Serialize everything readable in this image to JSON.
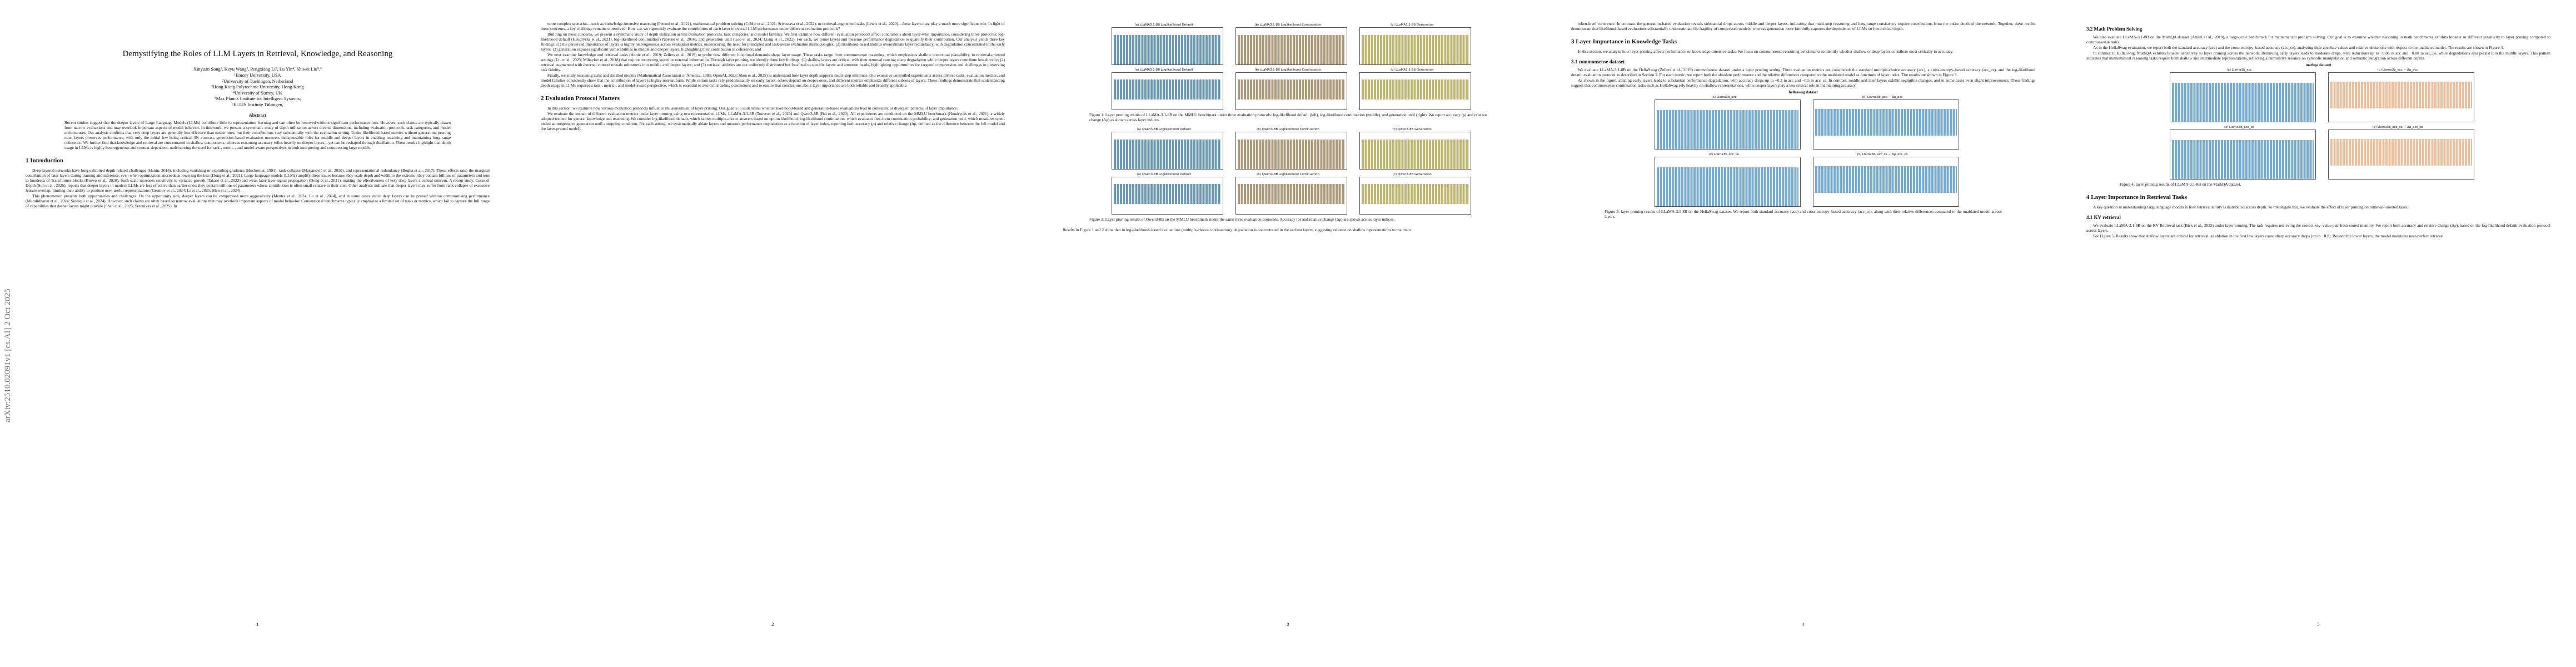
{
  "stamp": "arXiv:2510.02091v1  [cs.AI]  2 Oct 2025",
  "pages": [
    {
      "number": "1",
      "blocks": [
        {
          "type": "title",
          "text": "Demystifying the Roles of LLM Layers in Retrieval, Knowledge, and Reasoning"
        },
        {
          "type": "authors",
          "text": "Xinyuan Song¹, Keyu Wang², Pengxiang Li³, Lu Yin⁴, Shiwei Liu⁵,⁶"
        },
        {
          "type": "affil",
          "text": "¹Emory University, USA"
        },
        {
          "type": "affil",
          "text": "²University of Tuebingen, Netherland"
        },
        {
          "type": "affil",
          "text": "³Hong Kong Polytechnic University, Hong Kong"
        },
        {
          "type": "affil",
          "text": "⁴University of Surrey, UK"
        },
        {
          "type": "affil",
          "text": "⁵Max Planck Institute for Intelligent Systems,"
        },
        {
          "type": "affil",
          "text": "⁶ELLIS Institute Tübingen,"
        },
        {
          "type": "abshead",
          "text": "Abstract"
        },
        {
          "type": "abstract",
          "text": "Recent studies suggest that the deeper layers of Large Language Models (LLMs) contribute little to representation learning and can often be removed without significant performance loss. However, such claims are typically drawn from narrow evaluations and may overlook important aspects of model behavior. In this work, we present a systematic study of depth utilization across diverse dimensions, including evaluation protocols, task categories, and model architectures. Our analysis confirms that very deep layers are generally less effective than earlier ones, but their contributions vary substantially with the evaluation setting. Under likelihood-based metrics without generation, pruning most layers preserves performance, with only the initial few being critical. By contrast, generation-based evaluation uncovers indispensable roles for middle and deeper layers in enabling reasoning and maintaining long-range coherence. We further find that knowledge and retrieval are concentrated in shallow components, whereas reasoning accuracy relies heavily on deeper layers—yet can be reshaped through distillation. These results highlight that depth usage in LLMs is highly heterogeneous and context-dependent, underscoring the need for task-, metric-, and model-aware perspectives in both interpreting and compressing large models."
        },
        {
          "type": "h1",
          "text": "1   Introduction"
        },
        {
          "type": "p",
          "text": "Deep-layered networks have long exhibited depth-related challenges (Hanin, 2018), including vanishing or exploding gradients (Hochreiter, 1991), rank collapse (Marjanović et al., 2020), and representational redundancy (Bogha et al., 2017). These effects raise the marginal contribution of later layers during training and inference, even when optimization succeeds at lowering the loss (Dong et al., 2021). Large language models (LLMs) amplify these issues because they scale depth and width to the extreme: they contain billions of parameters and tens to hundreds of Transformer blocks (Brown et al., 2020). Such scale increases sensitivity to variance growth (Takase et al., 2023) and weak later-layer signal propagation (Dong et al., 2021), making the effectiveness of very deep layers a central concern. A recent study, Curse of Depth (Sun et al., 2025), reports that deeper layers in modern LLMs are less effective than earlier ones: they contain trillions of parameters whose contribution is often small relative to their cost. Other analyses indicate that deeper layers may suffer from rank collapse or excessive feature overlap, limiting their ability to produce new, useful representations (Gromov et al., 2024; Li et al., 2025; Men et al., 2024)."
        },
        {
          "type": "p",
          "text": "This phenomenon presents both opportunities and challenges. On the opportunity side, deeper layers can be compressed more aggressively (Mentra et al., 2024; Lu et al., 2024), and in some cases entire deep layers can be pruned without compromising performance (Muralidharan et al., 2024; Siddiqui et al., 2024). However, such claims are often based on narrow evaluations that may overlook important aspects of model behavior. Conventional benchmarks typically emphasize a limited set of tasks or metrics, which fail to capture the full range of capabilities that deeper layers might provide (Shen et al., 2025; Sreenivas et al., 2025). In"
        }
      ]
    },
    {
      "number": "2",
      "blocks": [
        {
          "type": "p",
          "text": "more complex scenarios—such as knowledge-intensive reasoning (Petroni et al., 2021), mathematical problem solving (Cobbe et al., 2021; Srivastava et al., 2022), or retrieval-augmented tasks (Lewis et al., 2020)—these layers may play a much more significant role. In light of these concerns, a key challenge remains unresolved: How can we rigorously evaluate the contribution of each layer to overall LLM performance under different evaluation protocols?"
        },
        {
          "type": "p",
          "text": "Building on these concerns, we present a systematic study of depth utilization across evaluation protocols, task categories, and model families. We first examine how different evaluation protocols affect conclusions about layer-wise importance, considering three protocols: log-likelihood default (Hendrycks et al., 2021), log-likelihood continuation (Paperno et al., 2016), and generation until (Gao et al., 2024; Liang et al., 2022). For each, we prune layers and measure performance degradation to quantify their contribution. Our analysis yields three key findings: (1) the perceived importance of layers is highly heterogeneous across evaluation metrics, underscoring the need for principled and task-aware evaluation methodologies; (2) likelihood-based metrics overestimate layer redundancy, with degradation concentrated in the early layers; (3) generation exposes significant vulnerabilities in middle and deeper layers, highlighting their contribution to coherence; and"
        },
        {
          "type": "p",
          "text": "We next examine knowledge and retrieval tasks (Annie et al., 2019; Zellers et al., 2019) to probe how different functional demands shape layer usage. These tasks range from commonsense reasoning, which emphasizes shallow contextual plausibility, to retrieval-oriented settings (Liu et al., 2023; Mihaylov et al., 2018) that require recovering stored or external information. Through layer pruning, we identify three key findings: (1) shallow layers are critical, with their removal causing sharp degradation while deeper layers contribute less directly; (2) retrieval augmented with external context reveals robustness into middle and deeper layers; and (3) retrieval abilities are not uniformly distributed but localized to specific layers and attention heads, highlighting opportunities for targeted compression and challenges in preserving task fidelity."
        },
        {
          "type": "p",
          "text": "Finally, we study reasoning tasks and distilled models (Mathematical Association of America, 1983; OpenAI, 2023; Shen et al., 2025) to understand how layer depth supports multi-step inference. Our extensive controlled experiments across diverse tasks, evaluation metrics, and model families consistently show that the contribution of layers is highly non-uniform. While certain tasks rely predominantly on early layers, others depend on deeper ones, and different metrics emphasize different subsets of layers. These findings demonstrate that understanding depth usage in LLMs requires a task-, metric-, and model-aware perspective, which is essential to avoid misleading conclusions and to ensure that conclusions about layer importance are both reliable and broadly applicable."
        },
        {
          "type": "h1",
          "text": "2   Evaluation Protocol Matters"
        },
        {
          "type": "p",
          "text": "In this section, we examine how various evaluation protocols influence the assessment of layer pruning. Our goal is to understand whether likelihood-based and generation-based evaluations lead to consistent or divergent patterns of layer importance."
        },
        {
          "type": "p",
          "text": "We evaluate the impact of different evaluation metrics under layer pruning using two representative LLMs, LLaMA-3.1-8B (Touvron et al., 2023) and Qwen3-8B (Bai et al., 2023). All experiments are conducted on the MMLU benchmark (Hendrycks et al., 2021), a widely adopted testbed for general knowledge and reasoning. We consider log-likelihood default, which scores multiple-choice answers based on option likelihood; log-likelihood continuation, which evaluates free-form continuation probability; and generation until, which measures open-ended autoregressive generation until a stopping condition. For each setting, we systematically ablate layers and measure performance degradation as a function of layer index, reporting both accuracy (ρ) and relative change (Δρ, defined as the difference between the full model and the layer-pruned model)."
        }
      ]
    },
    {
      "number": "3",
      "blocks": [
        {
          "type": "figure",
          "cols": 3,
          "panels": [
            {
              "title": "(a) LLaMA3.1-8B Loglikelihood Default",
              "color": "#4f86a8",
              "down": false
            },
            {
              "title": "(b) LLaMA3.1-8B Loglikelihood Continuation",
              "color": "#a08660",
              "down": false
            },
            {
              "title": "(c) LLaMA3.1-8B Generation",
              "color": "#b5a855",
              "down": false
            },
            {
              "title": "(a) LLaMA3.1-8B Loglikelihood Default",
              "color": "#4f86a8",
              "down": true
            },
            {
              "title": "(b) LLaMA3.1-8B Loglikelihood Continuation",
              "color": "#a08660",
              "down": true
            },
            {
              "title": "(c) LLaMA3.1-8B Generation",
              "color": "#b5a855",
              "down": true
            }
          ]
        },
        {
          "type": "caption",
          "text": "Figure 1: Layer pruning results of LLaMA-3.1-8B on the MMLU benchmark under three evaluation protocols: log-likelihood default (left), log-likelihood continuation (middle), and generation until (right). We report accuracy (ρ) and relative change (Δρ) as shown across layer indices."
        },
        {
          "type": "figure",
          "cols": 3,
          "panels": [
            {
              "title": "(a) Qwen3-8B Loglikelihood Default",
              "color": "#4f86a8",
              "down": false
            },
            {
              "title": "(b) Qwen3-8B Loglikelihood Continuation",
              "color": "#a08660",
              "down": false
            },
            {
              "title": "(c) Qwen3-8B Generation",
              "color": "#b5a855",
              "down": false
            },
            {
              "title": "(a) Qwen3-8B Loglikelihood Default",
              "color": "#4f86a8",
              "down": true
            },
            {
              "title": "(b) Qwen3-8B Loglikelihood Continuation",
              "color": "#a08660",
              "down": true
            },
            {
              "title": "(c) Qwen3-8B Generation",
              "color": "#b5a855",
              "down": true
            }
          ]
        },
        {
          "type": "caption",
          "text": "Figure 2: Layer pruning results of Qwen3-8B on the MMLU benchmark under the same three evaluation protocols. Accuracy (ρ) and relative change (Δρ) are shown across layer indices."
        },
        {
          "type": "p",
          "text": "Results in Figure 1 and 2 show that in log-likelihood–based evaluations (multiple-choice continuation), degradation is concentrated in the earliest layers, suggesting reliance on shallow representations to maintain"
        }
      ]
    },
    {
      "number": "4",
      "blocks": [
        {
          "type": "p",
          "text": "token-level coherence. In contrast, the generation-based evaluation reveals substantial drops across middle and deeper layers, indicating that multi-step reasoning and long-range consistency require contributions from the entire depth of the network. Together, these results demonstrate that likelihood-based evaluations substantially underestimate the fragility of compressed models, whereas generation more faithfully captures the dependence of LLMs on hierarchical depth."
        },
        {
          "type": "h1",
          "text": "3   Layer Importance in Knowledge Tasks"
        },
        {
          "type": "p",
          "text": "In this section, we analyze how layer pruning affects performance on knowledge-intensive tasks. We focus on commonsense reasoning benchmarks to identify whether shallow or deep layers contribute most critically to accuracy."
        },
        {
          "type": "h2",
          "text": "3.1   commonsense dataset"
        },
        {
          "type": "p",
          "text": "We evaluate LLaMA-3.1-8B on the HellaSwag (Zellers et al., 2019) commonsense dataset under a layer pruning setting. Three evaluation metrics are considered: the standard multiple-choice accuracy (acc), a cross-entropy–based accuracy (acc_ce), and the log-likelihood default evaluation protocol as described in Section 2. For each metric, we report both the absolute performance and the relative differences compared to the unablated model as functions of layer index. The results are shown in Figure 3."
        },
        {
          "type": "p",
          "text": "As shown in the figure, ablating early layers leads to substantial performance degradation, with accuracy drops up to −0.3 in acc and −0.5 in acc_ce. In contrast, middle and later layers exhibit negligible changes, and in some cases even slight improvements. These findings suggest that commonsense continuation tasks such as HellaSwag rely heavily on shallow representations, while deeper layers play a less critical role in maintaining accuracy."
        },
        {
          "type": "figure",
          "cols": 2,
          "heading": "hellaswag dataset",
          "panels": [
            {
              "title": "(a) Llama3b_acc",
              "color": "#5a9bc4",
              "down": false
            },
            {
              "title": "(b) Llama3b_acc − Δρ_acc",
              "color": "#5a9bc4",
              "down": true
            },
            {
              "title": "(c) Llama3b_acc_ce",
              "color": "#5a9bc4",
              "down": false
            },
            {
              "title": "(d) Llama3b_acc_ce − Δρ_acc_ce",
              "color": "#5a9bc4",
              "down": true
            }
          ]
        },
        {
          "type": "caption",
          "text": "Figure 3: layer pruning results of LLaMA-3.1-8B on the HellaSwag dataset. We report both standard accuracy (acc) and cross-entropy–based accuracy (acc_ce), along with their relative differences compared to the unablated model across layers."
        }
      ]
    },
    {
      "number": "5",
      "blocks": [
        {
          "type": "h2",
          "text": "3.2   Math Problem Solving"
        },
        {
          "type": "p",
          "text": "We also evaluate LLaMA-3.1-8B on the MathQA dataset (Amini et al., 2019), a large-scale benchmark for mathematical problem solving. Our goal is to examine whether reasoning in math benchmarks exhibits broader or different sensitivity to layer pruning compared to commonsense tasks."
        },
        {
          "type": "p",
          "text": "As in the HellaSwag evaluation, we report both the standard accuracy (acc) and the cross-entropy–based accuracy (acc_ce), analyzing their absolute values and relative deviations with respect to the unablated model. The results are shown in Figure 4."
        },
        {
          "type": "p",
          "text": "In contrast to HellaSwag, MathQA exhibits broader sensitivity to layer pruning across the network. Removing early layers leads to moderate drops, with reductions up to −0.06 in acc and −0.08 in acc_ce, while degradations also persist into the middle layers. This pattern indicates that mathematical reasoning tasks require both shallow and intermediate representations, reflecting a cumulative reliance on symbolic manipulation and semantic integration across different depths."
        },
        {
          "type": "figure",
          "cols": 2,
          "heading": "mathqa dataset",
          "panels": [
            {
              "title": "(a) Llama3b_acc",
              "color": "#5a9bc4",
              "down": false
            },
            {
              "title": "(b) Llama3b_acc − Δρ_acc",
              "color": "#e8b48a",
              "down": true
            },
            {
              "title": "(c) Llama3b_acc_ce",
              "color": "#5a9bc4",
              "down": false
            },
            {
              "title": "(d) Llama3b_acc_ce − Δρ_acc_ce",
              "color": "#e8b48a",
              "down": true
            }
          ]
        },
        {
          "type": "caption",
          "text": "Figure 4: layer pruning results of LLaMA-3.1-8B on the MathQA dataset."
        },
        {
          "type": "h1",
          "text": "4   Layer Importance in Retrieval Tasks"
        },
        {
          "type": "p",
          "text": "A key question in understanding large language models is how retrieval ability is distributed across depth. To investigate this, we evaluate the effect of layer pruning on retrieval-oriented tasks."
        },
        {
          "type": "h2",
          "text": "4.1   KV retrieval"
        },
        {
          "type": "p",
          "text": "We evaluate LLaMA-3.1-8B on the KV Retrieval task (Bick et al., 2025) under layer pruning. The task requires retrieving the correct key–value pair from stored memory. We report both accuracy and relative change (Δρ), based on the log-likelihood default evaluation protocol across layers."
        },
        {
          "type": "p",
          "text": "See Figure 5. Results show that shallow layers are critical for retrieval, as ablation in the first few layers cause sharp accuracy drops (up to −0.8). Beyond the lower layers, the model maintains near-perfect retrieval"
        }
      ]
    }
  ]
}
